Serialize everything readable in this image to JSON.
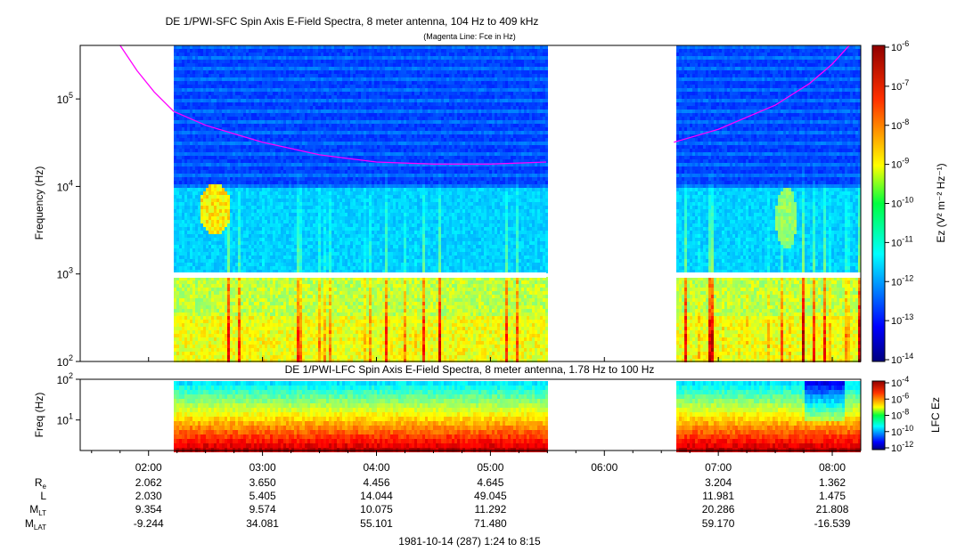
{
  "chart_data": [
    {
      "type": "heatmap",
      "title": "DE 1/PWI-SFC  Spin Axis E-Field Spectra, 8 meter antenna, 104 Hz to 409 kHz",
      "subtitle": "(Magenta Line: Fce in Hz)",
      "ylabel": "Frequency (Hz)",
      "yscale": "log",
      "ylim": [
        100,
        409000
      ],
      "y_ticks": [
        {
          "value": 100,
          "base": "10",
          "exp": "2"
        },
        {
          "value": 1000,
          "base": "10",
          "exp": "3"
        },
        {
          "value": 10000,
          "base": "10",
          "exp": "4"
        },
        {
          "value": 100000,
          "base": "10",
          "exp": "5"
        }
      ],
      "data_gaps_hours": [
        [
          1.4,
          2.22
        ],
        [
          5.49,
          6.61
        ]
      ],
      "colorbar": {
        "label": "Ez (V² m⁻² Hz⁻¹)",
        "scale": "log",
        "range": [
          1e-14,
          1e-06
        ],
        "ticks": [
          {
            "base": "10",
            "exp": "-6",
            "value": 1e-06
          },
          {
            "base": "10",
            "exp": "-7",
            "value": 1e-07
          },
          {
            "base": "10",
            "exp": "-8",
            "value": 1e-08
          },
          {
            "base": "10",
            "exp": "-9",
            "value": 1e-09
          },
          {
            "base": "10",
            "exp": "-10",
            "value": 1e-10
          },
          {
            "base": "10",
            "exp": "-11",
            "value": 1e-11
          },
          {
            "base": "10",
            "exp": "-12",
            "value": 1e-12
          },
          {
            "base": "10",
            "exp": "-13",
            "value": 1e-13
          },
          {
            "base": "10",
            "exp": "-14",
            "value": 1e-14
          }
        ]
      },
      "fce_line": {
        "color": "#ff00ff",
        "segments": [
          [
            [
              1.75,
              409000
            ],
            [
              1.9,
              210000
            ],
            [
              2.05,
              120000
            ],
            [
              2.22,
              72000
            ],
            [
              2.5,
              50000
            ],
            [
              3.0,
              32000
            ],
            [
              3.5,
              23000
            ],
            [
              4.0,
              19000
            ],
            [
              4.5,
              18000
            ],
            [
              5.0,
              18000
            ],
            [
              5.49,
              19000
            ]
          ],
          [
            [
              6.61,
              32000
            ],
            [
              7.0,
              45000
            ],
            [
              7.5,
              85000
            ],
            [
              7.8,
              150000
            ],
            [
              8.0,
              250000
            ],
            [
              8.15,
              409000
            ]
          ]
        ]
      }
    },
    {
      "type": "heatmap",
      "title": "DE 1/PWI-LFC  Spin Axis E-Field Spectra, 8 meter antenna, 1.78 Hz to 100 Hz",
      "ylabel": "Freq (Hz)",
      "yscale": "log",
      "ylim": [
        1.78,
        100
      ],
      "y_ticks": [
        {
          "value": 10,
          "base": "10",
          "exp": "1"
        },
        {
          "value": 100,
          "base": "10",
          "exp": "2"
        }
      ],
      "data_gaps_hours": [
        [
          1.4,
          2.22
        ],
        [
          5.49,
          6.61
        ]
      ],
      "colorbar": {
        "label": "LFC Ez",
        "scale": "log",
        "range": [
          1e-12,
          0.0001
        ],
        "ticks": [
          {
            "base": "10",
            "exp": "-4",
            "value": 0.0001
          },
          {
            "base": "10",
            "exp": "-6",
            "value": 1e-06
          },
          {
            "base": "10",
            "exp": "-8",
            "value": 1e-08
          },
          {
            "base": "10",
            "exp": "-10",
            "value": 1e-10
          },
          {
            "base": "10",
            "exp": "-12",
            "value": 1e-12
          }
        ]
      }
    }
  ],
  "x_axis": {
    "range_hours": [
      1.4,
      8.25
    ],
    "ticks": [
      {
        "hour": 2,
        "label": "02:00"
      },
      {
        "hour": 3,
        "label": "03:00"
      },
      {
        "hour": 4,
        "label": "04:00"
      },
      {
        "hour": 5,
        "label": "05:00"
      },
      {
        "hour": 6,
        "label": "06:00"
      },
      {
        "hour": 7,
        "label": "07:00"
      },
      {
        "hour": 8,
        "label": "08:00"
      }
    ],
    "caption": "1981-10-14 (287) 1:24 to 8:15"
  },
  "ephemeris": [
    {
      "label": "R",
      "sub": "e",
      "values": {
        "2": "2.062",
        "3": "3.650",
        "4": "4.456",
        "5": "4.645",
        "7": "3.204",
        "8": "1.362"
      }
    },
    {
      "label": "L",
      "sub": "",
      "values": {
        "2": "2.030",
        "3": "5.405",
        "4": "14.044",
        "5": "49.045",
        "7": "11.981",
        "8": "1.475"
      }
    },
    {
      "label": "M",
      "sub": "LT",
      "values": {
        "2": "9.354",
        "3": "9.574",
        "4": "10.075",
        "5": "11.292",
        "7": "20.286",
        "8": "21.808"
      }
    },
    {
      "label": "M",
      "sub": "LAT",
      "values": {
        "2": "-9.244",
        "3": "34.081",
        "4": "55.101",
        "5": "71.480",
        "7": "59.170",
        "8": "-16.539"
      }
    }
  ]
}
